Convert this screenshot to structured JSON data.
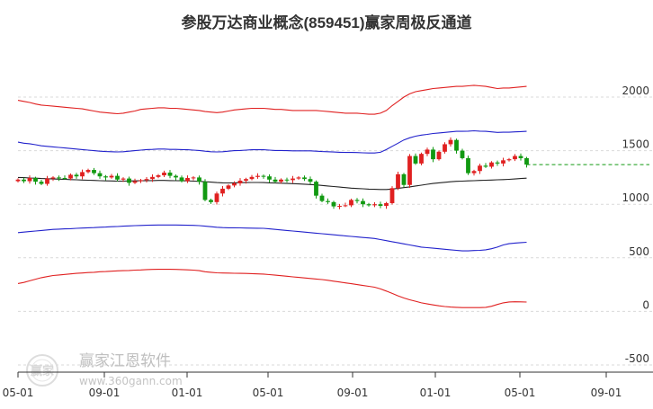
{
  "chart_data": {
    "type": "candlestick",
    "title": "参股万达商业概念(859451)赢家周极反通道",
    "x_tick_labels": [
      "05-01",
      "09-01",
      "01-01",
      "05-01",
      "09-01",
      "01-01",
      "05-01",
      "09-01"
    ],
    "y_tick_labels": [
      "2000",
      "1500",
      "1000",
      "500",
      "0",
      "-500"
    ],
    "ylim": [
      -500,
      2000
    ],
    "grid": "horizontal dashed",
    "last_close": 1370,
    "colors": {
      "up": "#e02020",
      "down": "#119911",
      "outer_band": "#e02020",
      "inner_band": "#2222cc",
      "middle_line": "#222222",
      "last_price_line": "#119911",
      "grid": "#d9d9d9"
    },
    "series": {
      "close": [
        1230,
        1215,
        1245,
        1210,
        1190,
        1240,
        1250,
        1245,
        1240,
        1275,
        1260,
        1300,
        1320,
        1290,
        1260,
        1250,
        1265,
        1230,
        1240,
        1200,
        1215,
        1225,
        1235,
        1255,
        1270,
        1295,
        1265,
        1250,
        1215,
        1245,
        1250,
        1210,
        1040,
        1020,
        1100,
        1145,
        1175,
        1195,
        1220,
        1235,
        1255,
        1265,
        1260,
        1230,
        1210,
        1230,
        1225,
        1240,
        1250,
        1235,
        1210,
        1080,
        1030,
        1020,
        980,
        985,
        990,
        1040,
        1030,
        1000,
        990,
        1000,
        985,
        1010,
        1150,
        1280,
        1180,
        1450,
        1380,
        1470,
        1510,
        1420,
        1490,
        1560,
        1600,
        1500,
        1430,
        1290,
        1310,
        1360,
        1350,
        1390,
        1380,
        1410,
        1420,
        1450,
        1430,
        1370
      ],
      "outer_upper": [
        1970,
        1960,
        1950,
        1935,
        1925,
        1920,
        1915,
        1910,
        1905,
        1900,
        1895,
        1890,
        1880,
        1870,
        1860,
        1855,
        1850,
        1845,
        1850,
        1860,
        1870,
        1885,
        1890,
        1895,
        1900,
        1900,
        1895,
        1895,
        1890,
        1885,
        1880,
        1875,
        1865,
        1860,
        1855,
        1860,
        1870,
        1880,
        1885,
        1890,
        1895,
        1895,
        1895,
        1890,
        1885,
        1885,
        1880,
        1875,
        1875,
        1875,
        1875,
        1875,
        1870,
        1865,
        1860,
        1855,
        1850,
        1850,
        1850,
        1845,
        1840,
        1840,
        1850,
        1875,
        1920,
        1960,
        2000,
        2030,
        2050,
        2060,
        2070,
        2080,
        2085,
        2090,
        2095,
        2100,
        2100,
        2105,
        2110,
        2105,
        2100,
        2090,
        2080,
        2085,
        2085,
        2090,
        2095,
        2100
      ],
      "inner_upper": [
        1580,
        1570,
        1565,
        1555,
        1545,
        1540,
        1535,
        1530,
        1525,
        1520,
        1515,
        1510,
        1505,
        1500,
        1495,
        1492,
        1490,
        1488,
        1490,
        1495,
        1500,
        1505,
        1510,
        1512,
        1515,
        1515,
        1512,
        1512,
        1510,
        1508,
        1505,
        1502,
        1495,
        1490,
        1488,
        1490,
        1495,
        1500,
        1502,
        1505,
        1508,
        1508,
        1508,
        1505,
        1502,
        1502,
        1500,
        1498,
        1498,
        1498,
        1498,
        1495,
        1492,
        1490,
        1487,
        1485,
        1483,
        1483,
        1482,
        1480,
        1478,
        1478,
        1485,
        1510,
        1540,
        1570,
        1600,
        1620,
        1635,
        1645,
        1652,
        1660,
        1665,
        1670,
        1675,
        1680,
        1680,
        1682,
        1685,
        1682,
        1680,
        1675,
        1670,
        1672,
        1672,
        1675,
        1678,
        1680
      ],
      "middle": [
        1250,
        1248,
        1245,
        1243,
        1240,
        1238,
        1236,
        1234,
        1232,
        1230,
        1228,
        1226,
        1224,
        1222,
        1220,
        1218,
        1217,
        1216,
        1216,
        1217,
        1218,
        1219,
        1220,
        1221,
        1222,
        1222,
        1221,
        1220,
        1219,
        1218,
        1216,
        1214,
        1210,
        1206,
        1202,
        1200,
        1199,
        1200,
        1201,
        1202,
        1203,
        1203,
        1202,
        1200,
        1198,
        1196,
        1194,
        1192,
        1190,
        1187,
        1184,
        1180,
        1175,
        1170,
        1165,
        1160,
        1155,
        1150,
        1147,
        1144,
        1141,
        1139,
        1138,
        1138,
        1142,
        1148,
        1155,
        1162,
        1170,
        1178,
        1186,
        1194,
        1200,
        1205,
        1210,
        1214,
        1216,
        1218,
        1220,
        1222,
        1224,
        1226,
        1228,
        1230,
        1232,
        1236,
        1240,
        1243
      ],
      "inner_lower": [
        735,
        740,
        745,
        750,
        755,
        760,
        765,
        768,
        770,
        772,
        775,
        778,
        780,
        782,
        785,
        787,
        790,
        792,
        795,
        798,
        800,
        802,
        804,
        805,
        806,
        806,
        806,
        806,
        805,
        804,
        803,
        800,
        795,
        790,
        785,
        782,
        780,
        780,
        779,
        778,
        777,
        776,
        775,
        770,
        765,
        760,
        755,
        750,
        745,
        740,
        735,
        730,
        725,
        720,
        715,
        710,
        705,
        700,
        695,
        690,
        685,
        680,
        670,
        660,
        650,
        640,
        630,
        620,
        610,
        600,
        595,
        590,
        585,
        580,
        575,
        570,
        565,
        565,
        568,
        570,
        575,
        585,
        600,
        620,
        632,
        638,
        642,
        645
      ],
      "outer_lower": [
        260,
        270,
        285,
        300,
        315,
        325,
        335,
        340,
        345,
        350,
        355,
        358,
        362,
        365,
        370,
        372,
        375,
        378,
        380,
        382,
        385,
        387,
        390,
        392,
        393,
        393,
        393,
        392,
        390,
        388,
        385,
        380,
        370,
        365,
        360,
        358,
        357,
        356,
        355,
        354,
        352,
        350,
        348,
        343,
        338,
        333,
        328,
        322,
        317,
        312,
        307,
        302,
        297,
        290,
        282,
        274,
        266,
        258,
        250,
        242,
        234,
        226,
        210,
        190,
        168,
        145,
        125,
        108,
        95,
        80,
        70,
        60,
        52,
        45,
        40,
        38,
        35,
        35,
        35,
        35,
        38,
        48,
        65,
        80,
        88,
        90,
        89,
        87
      ]
    }
  },
  "watermark": {
    "logo_text": "赢家",
    "brand": "赢家江恩软件",
    "url": "www.360gann.com"
  }
}
